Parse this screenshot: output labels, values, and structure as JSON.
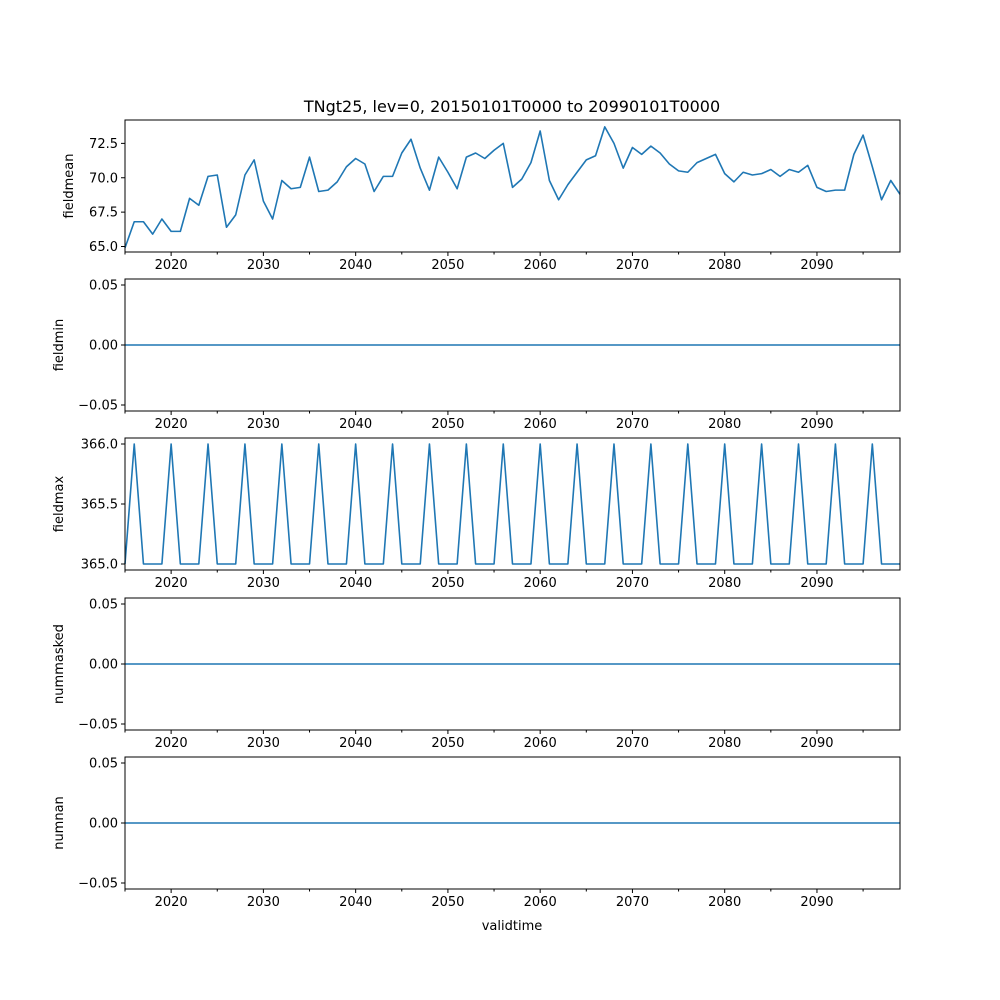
{
  "chart_data": {
    "type": "line",
    "title": "TNgt25, lev=0, 20150101T0000 to 20990101T0000",
    "xlabel": "validtime",
    "x": [
      2015,
      2016,
      2017,
      2018,
      2019,
      2020,
      2021,
      2022,
      2023,
      2024,
      2025,
      2026,
      2027,
      2028,
      2029,
      2030,
      2031,
      2032,
      2033,
      2034,
      2035,
      2036,
      2037,
      2038,
      2039,
      2040,
      2041,
      2042,
      2043,
      2044,
      2045,
      2046,
      2047,
      2048,
      2049,
      2050,
      2051,
      2052,
      2053,
      2054,
      2055,
      2056,
      2057,
      2058,
      2059,
      2060,
      2061,
      2062,
      2063,
      2064,
      2065,
      2066,
      2067,
      2068,
      2069,
      2070,
      2071,
      2072,
      2073,
      2074,
      2075,
      2076,
      2077,
      2078,
      2079,
      2080,
      2081,
      2082,
      2083,
      2084,
      2085,
      2086,
      2087,
      2088,
      2089,
      2090,
      2091,
      2092,
      2093,
      2094,
      2095,
      2096,
      2097,
      2098,
      2099
    ],
    "xlim": [
      2015,
      2099
    ],
    "xticks": [
      2020,
      2030,
      2040,
      2050,
      2060,
      2070,
      2080,
      2090
    ],
    "xticks_minor": [
      2015,
      2025,
      2035,
      2045,
      2055,
      2065,
      2075,
      2085,
      2095
    ],
    "color": "#1f77b4",
    "subplots": [
      {
        "ylabel": "fieldmean",
        "ylim": [
          64.6,
          74.2
        ],
        "yticks": [
          "65.0",
          "67.5",
          "70.0",
          "72.5"
        ],
        "values": [
          64.9,
          66.8,
          66.8,
          65.9,
          67.0,
          66.1,
          66.1,
          68.5,
          68.0,
          70.1,
          70.2,
          66.4,
          67.3,
          70.2,
          71.3,
          68.3,
          67.0,
          69.8,
          69.2,
          69.3,
          71.5,
          69.0,
          69.1,
          69.7,
          70.8,
          71.4,
          71.0,
          69.0,
          70.1,
          70.1,
          71.8,
          72.8,
          70.7,
          69.1,
          71.5,
          70.4,
          69.2,
          71.5,
          71.8,
          71.4,
          72.0,
          72.5,
          69.3,
          69.9,
          71.1,
          73.4,
          69.8,
          68.4,
          69.5,
          70.4,
          71.3,
          71.6,
          73.7,
          72.5,
          70.7,
          72.2,
          71.7,
          72.3,
          71.8,
          71.0,
          70.5,
          70.4,
          71.1,
          71.4,
          71.7,
          70.3,
          69.7,
          70.4,
          70.2,
          70.3,
          70.6,
          70.1,
          70.6,
          70.4,
          70.9,
          69.3,
          69.0,
          69.1,
          69.1,
          71.7,
          73.1,
          70.8,
          68.4,
          69.8,
          68.8
        ]
      },
      {
        "ylabel": "fieldmin",
        "ylim": [
          -0.055,
          0.055
        ],
        "yticks": [
          "−0.05",
          "0.00",
          "0.05"
        ],
        "values": [
          0,
          0,
          0,
          0,
          0,
          0,
          0,
          0,
          0,
          0,
          0,
          0,
          0,
          0,
          0,
          0,
          0,
          0,
          0,
          0,
          0,
          0,
          0,
          0,
          0,
          0,
          0,
          0,
          0,
          0,
          0,
          0,
          0,
          0,
          0,
          0,
          0,
          0,
          0,
          0,
          0,
          0,
          0,
          0,
          0,
          0,
          0,
          0,
          0,
          0,
          0,
          0,
          0,
          0,
          0,
          0,
          0,
          0,
          0,
          0,
          0,
          0,
          0,
          0,
          0,
          0,
          0,
          0,
          0,
          0,
          0,
          0,
          0,
          0,
          0,
          0,
          0,
          0,
          0,
          0,
          0,
          0,
          0,
          0,
          0
        ]
      },
      {
        "ylabel": "fieldmax",
        "ylim": [
          364.95,
          366.05
        ],
        "yticks": [
          "365.0",
          "365.5",
          "366.0"
        ],
        "values": [
          365,
          366,
          365,
          365,
          365,
          366,
          365,
          365,
          365,
          366,
          365,
          365,
          365,
          366,
          365,
          365,
          365,
          366,
          365,
          365,
          365,
          366,
          365,
          365,
          365,
          366,
          365,
          365,
          365,
          366,
          365,
          365,
          365,
          366,
          365,
          365,
          365,
          366,
          365,
          365,
          365,
          366,
          365,
          365,
          365,
          366,
          365,
          365,
          365,
          366,
          365,
          365,
          365,
          366,
          365,
          365,
          365,
          366,
          365,
          365,
          365,
          366,
          365,
          365,
          365,
          366,
          365,
          365,
          365,
          366,
          365,
          365,
          365,
          366,
          365,
          365,
          365,
          366,
          365,
          365,
          365,
          366,
          365,
          365,
          365
        ]
      },
      {
        "ylabel": "nummasked",
        "ylim": [
          -0.055,
          0.055
        ],
        "yticks": [
          "−0.05",
          "0.00",
          "0.05"
        ],
        "values": [
          0,
          0,
          0,
          0,
          0,
          0,
          0,
          0,
          0,
          0,
          0,
          0,
          0,
          0,
          0,
          0,
          0,
          0,
          0,
          0,
          0,
          0,
          0,
          0,
          0,
          0,
          0,
          0,
          0,
          0,
          0,
          0,
          0,
          0,
          0,
          0,
          0,
          0,
          0,
          0,
          0,
          0,
          0,
          0,
          0,
          0,
          0,
          0,
          0,
          0,
          0,
          0,
          0,
          0,
          0,
          0,
          0,
          0,
          0,
          0,
          0,
          0,
          0,
          0,
          0,
          0,
          0,
          0,
          0,
          0,
          0,
          0,
          0,
          0,
          0,
          0,
          0,
          0,
          0,
          0,
          0,
          0,
          0,
          0,
          0
        ]
      },
      {
        "ylabel": "numnan",
        "ylim": [
          -0.055,
          0.055
        ],
        "yticks": [
          "−0.05",
          "0.00",
          "0.05"
        ],
        "values": [
          0,
          0,
          0,
          0,
          0,
          0,
          0,
          0,
          0,
          0,
          0,
          0,
          0,
          0,
          0,
          0,
          0,
          0,
          0,
          0,
          0,
          0,
          0,
          0,
          0,
          0,
          0,
          0,
          0,
          0,
          0,
          0,
          0,
          0,
          0,
          0,
          0,
          0,
          0,
          0,
          0,
          0,
          0,
          0,
          0,
          0,
          0,
          0,
          0,
          0,
          0,
          0,
          0,
          0,
          0,
          0,
          0,
          0,
          0,
          0,
          0,
          0,
          0,
          0,
          0,
          0,
          0,
          0,
          0,
          0,
          0,
          0,
          0,
          0,
          0,
          0,
          0,
          0,
          0,
          0,
          0,
          0,
          0,
          0,
          0
        ]
      }
    ]
  }
}
